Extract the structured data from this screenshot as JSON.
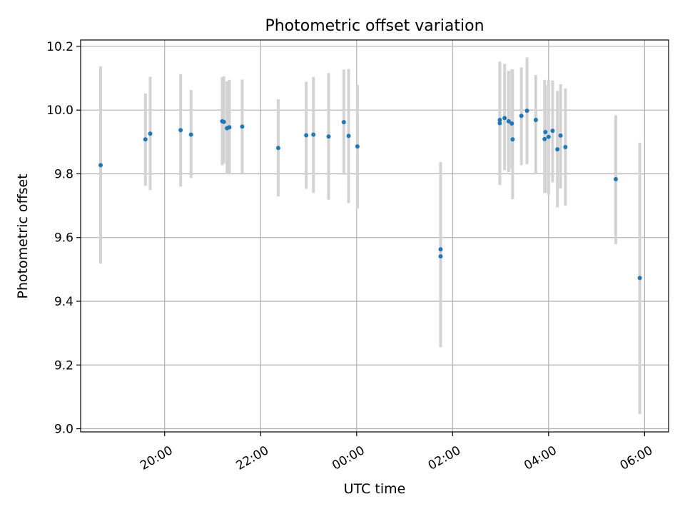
{
  "chart_data": {
    "type": "scatter",
    "title": "Photometric offset variation",
    "xlabel": "UTC time",
    "ylabel": "Photometric offset",
    "xlim": [
      "18:15",
      "06:30"
    ],
    "ylim": [
      8.99,
      10.22
    ],
    "grid": true,
    "x_ticks": [
      "20:00",
      "22:00",
      "00:00",
      "02:00",
      "04:00",
      "06:00"
    ],
    "y_ticks": [
      "9.0",
      "9.2",
      "9.4",
      "9.6",
      "9.8",
      "10.0",
      "10.2"
    ],
    "marker_color": "#1f77b4",
    "errorbar_color": "#d3d3d3",
    "series": [
      {
        "x": [
          "18:40",
          "19:36",
          "19:42",
          "20:20",
          "20:33",
          "21:12",
          "21:14",
          "21:18",
          "21:21",
          "21:37",
          "22:22",
          "22:57",
          "23:06",
          "23:25",
          "23:44",
          "23:50",
          "00:01",
          "01:45",
          "01:45",
          "02:59",
          "02:59",
          "03:05",
          "03:10",
          "03:14",
          "03:15",
          "03:26",
          "03:33",
          "03:44",
          "03:55",
          "03:56",
          "04:00",
          "04:05",
          "04:11",
          "04:15",
          "04:21",
          "05:24",
          "05:54"
        ],
        "y": [
          9.827,
          9.908,
          9.926,
          9.937,
          9.923,
          9.965,
          9.963,
          9.943,
          9.946,
          9.948,
          9.881,
          9.921,
          9.923,
          9.917,
          9.962,
          9.919,
          9.886,
          9.563,
          9.541,
          9.969,
          9.959,
          9.975,
          9.965,
          9.958,
          9.908,
          9.982,
          9.998,
          9.969,
          9.909,
          9.931,
          9.916,
          9.935,
          9.877,
          9.92,
          9.884,
          9.783,
          9.473
        ],
        "err_low": [
          9.518,
          9.762,
          9.749,
          9.76,
          9.787,
          9.827,
          9.833,
          9.799,
          9.799,
          9.8,
          9.729,
          9.753,
          9.74,
          9.719,
          9.797,
          9.708,
          9.691,
          9.256,
          9.256,
          9.765,
          9.765,
          9.811,
          9.805,
          9.815,
          9.72,
          9.827,
          9.83,
          9.799,
          9.74,
          9.74,
          9.734,
          9.773,
          9.695,
          9.754,
          9.7,
          9.579,
          9.046
        ],
        "err_high": [
          10.137,
          10.052,
          10.105,
          10.113,
          10.063,
          10.103,
          10.106,
          10.09,
          10.095,
          10.096,
          10.034,
          10.089,
          10.104,
          10.116,
          10.127,
          10.129,
          10.079,
          9.837,
          9.837,
          10.152,
          10.152,
          10.145,
          10.123,
          10.128,
          10.128,
          10.134,
          10.165,
          10.11,
          10.095,
          10.078,
          10.093,
          10.093,
          10.06,
          10.081,
          10.068,
          9.984,
          9.898
        ]
      }
    ]
  }
}
